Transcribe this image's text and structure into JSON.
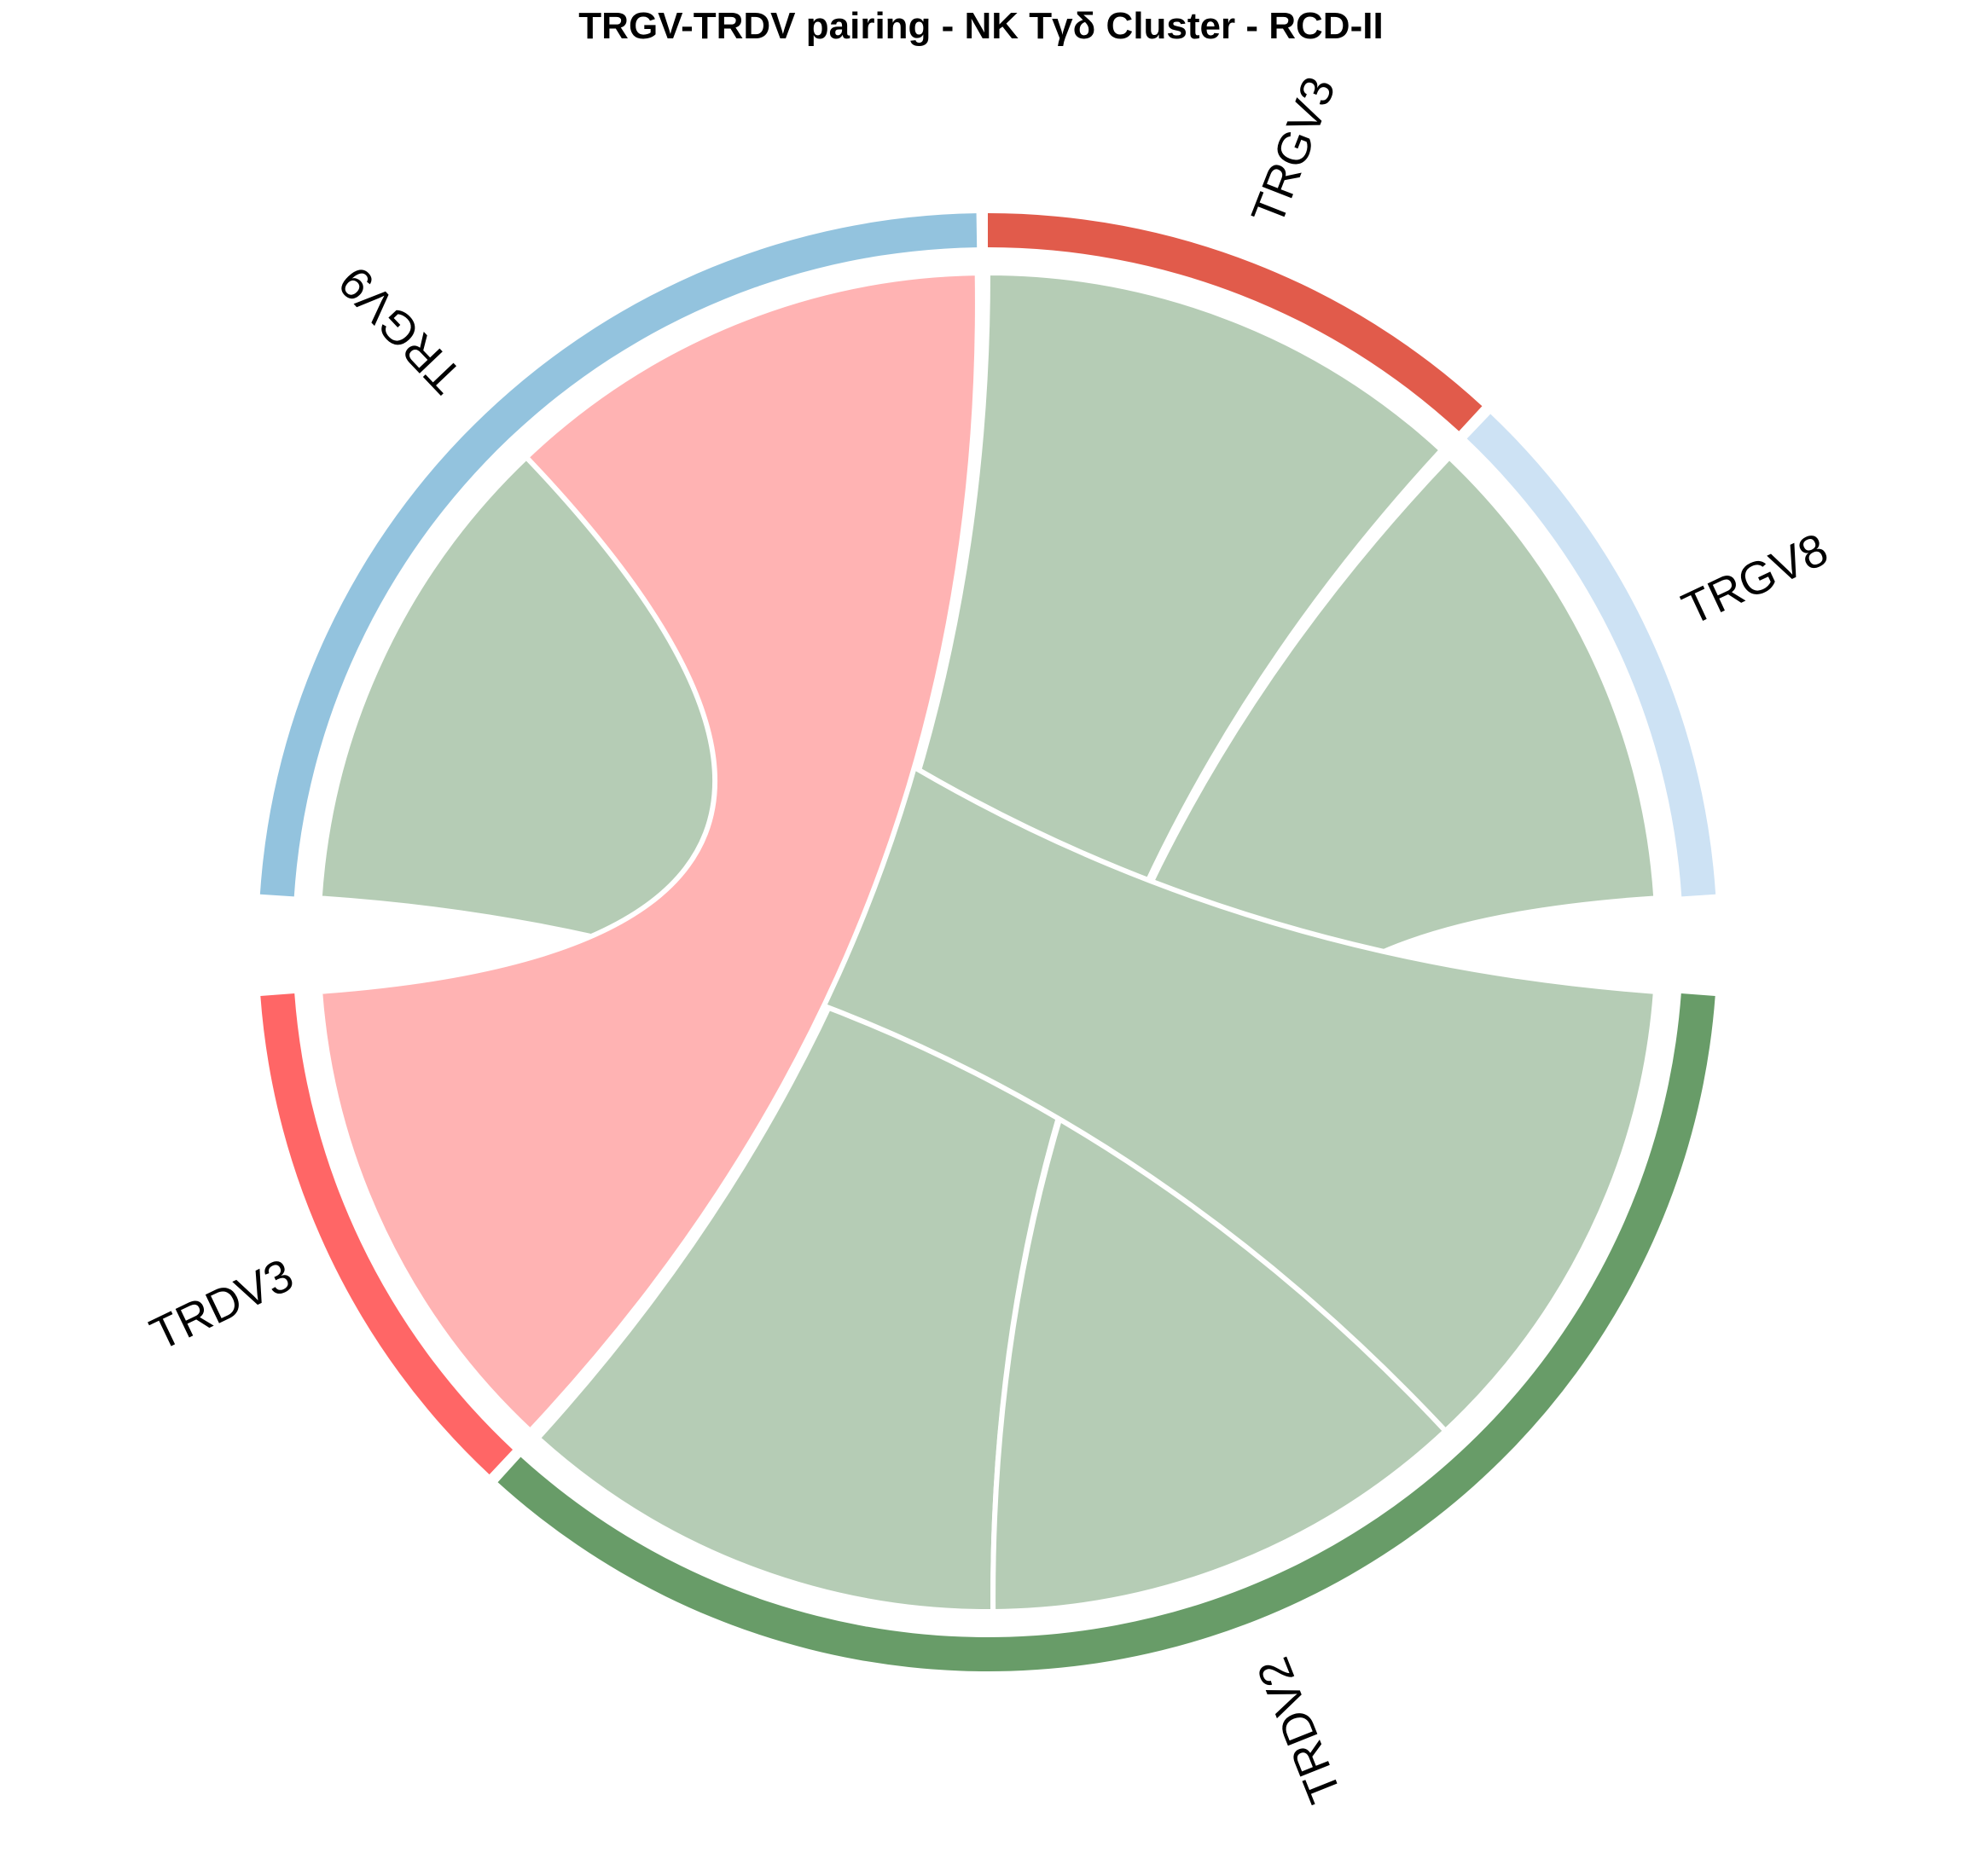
{
  "chart_data": {
    "type": "chord",
    "title": "TRGV-TRDV pairing - NK Tγδ Cluster - RCD-II",
    "sectors": [
      {
        "name": "TRGV3",
        "group": "TRGV",
        "color": "#E15B4B"
      },
      {
        "name": "TRGV8",
        "group": "TRGV",
        "color": "#CDE2F4"
      },
      {
        "name": "TRDV2",
        "group": "TRDV",
        "color": "#689C68"
      },
      {
        "name": "TRDV3",
        "group": "TRDV",
        "color": "#FF6666"
      },
      {
        "name": "TRGV9",
        "group": "TRGV",
        "color": "#93C3DE"
      }
    ],
    "links": [
      {
        "from": "TRGV3",
        "to": "TRDV2",
        "value": 1,
        "color": "#B5CCB5"
      },
      {
        "from": "TRGV8",
        "to": "TRDV2",
        "value": 1,
        "color": "#B5CCB5"
      },
      {
        "from": "TRGV9",
        "to": "TRDV2",
        "value": 1,
        "color": "#B5CCB5"
      },
      {
        "from": "TRGV9",
        "to": "TRDV3",
        "value": 1,
        "color": "#FFB3B3"
      }
    ]
  }
}
